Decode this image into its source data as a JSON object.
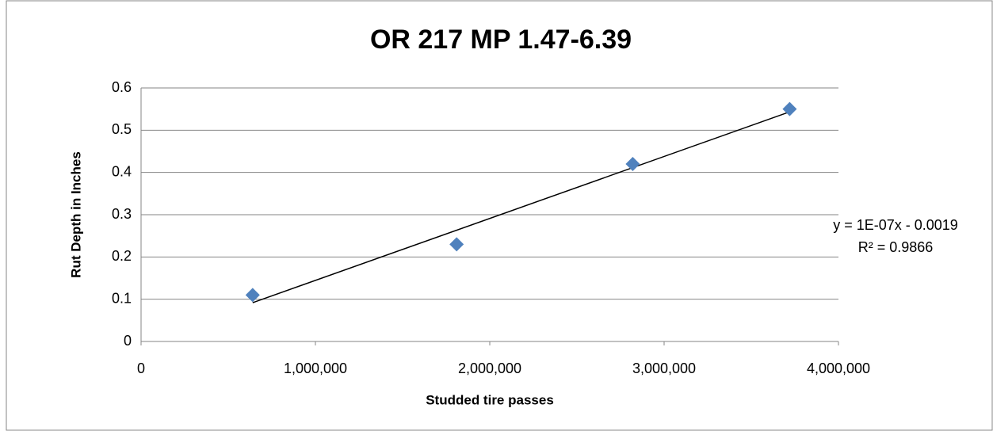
{
  "chart_data": {
    "type": "scatter",
    "title": "OR 217 MP 1.47-6.39",
    "x_label": "Studded tire passes",
    "y_label": "Rut Depth in Inches",
    "series": [
      {
        "name": "Rut Depth",
        "color": "#4f81bd",
        "x": [
          640000,
          1810000,
          2820000,
          3720000
        ],
        "values": [
          0.11,
          0.23,
          0.42,
          0.55
        ]
      }
    ],
    "trendline": {
      "type": "linear",
      "color": "#000000"
    },
    "annotations": [
      "y = 1E-07x - 0.0019",
      "R² = 0.9866"
    ],
    "xlim": [
      0,
      4000000
    ],
    "xticks": [
      0,
      {
        "value": 1000000,
        "label": "1,000,000"
      },
      {
        "value": 2000000,
        "label": "2,000,000"
      },
      {
        "value": 3000000,
        "label": "3,000,000"
      },
      {
        "value": 4000000,
        "label": "4,000,000"
      }
    ],
    "ylim": [
      0,
      0.6
    ],
    "yticks": [
      0,
      0.1,
      0.2,
      0.3,
      0.4,
      0.5,
      0.6
    ],
    "grid": true
  }
}
